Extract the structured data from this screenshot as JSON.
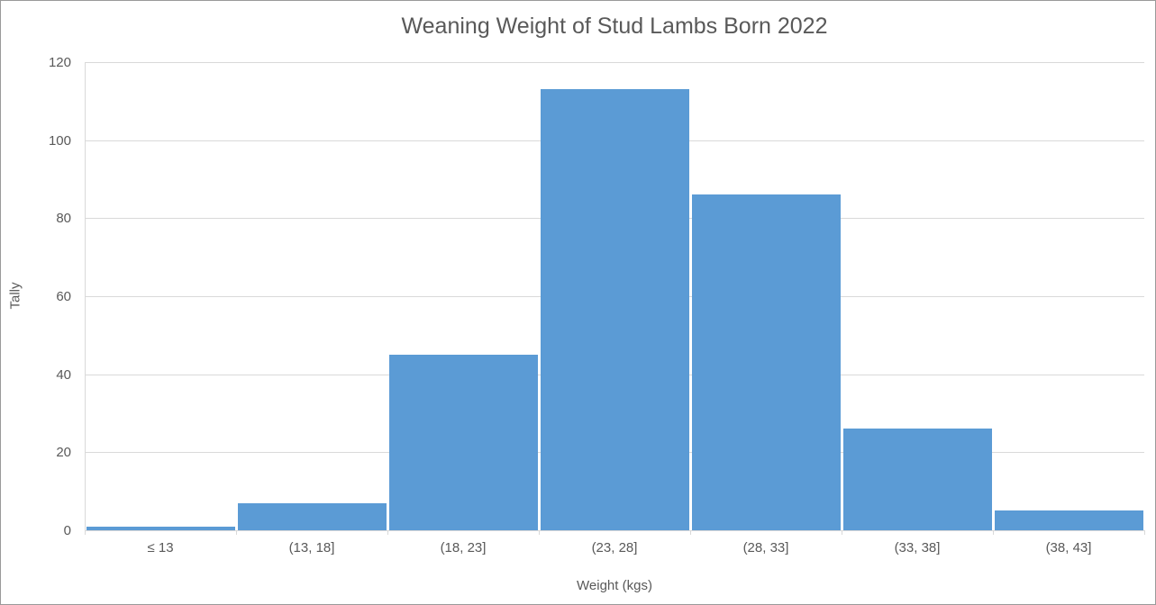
{
  "chart_data": {
    "type": "bar",
    "subtype": "histogram",
    "title": "Weaning Weight of Stud Lambs Born 2022",
    "xlabel": "Weight (kgs)",
    "ylabel": "Tally",
    "categories": [
      "≤ 13",
      "(13, 18]",
      "(18, 23]",
      "(23, 28]",
      "(28, 33]",
      "(33, 38]",
      "(38, 43]"
    ],
    "values": [
      1,
      7,
      45,
      113,
      86,
      26,
      5
    ],
    "ylim": [
      0,
      120
    ],
    "yticks": [
      0,
      20,
      40,
      60,
      80,
      100,
      120
    ],
    "grid": "horizontal",
    "legend_position": "none",
    "colors": {
      "bar": "#5b9bd5",
      "gridline": "#d9d9d9",
      "axis_line": "#d9d9d9",
      "text": "#595959",
      "background": "#ffffff"
    }
  }
}
